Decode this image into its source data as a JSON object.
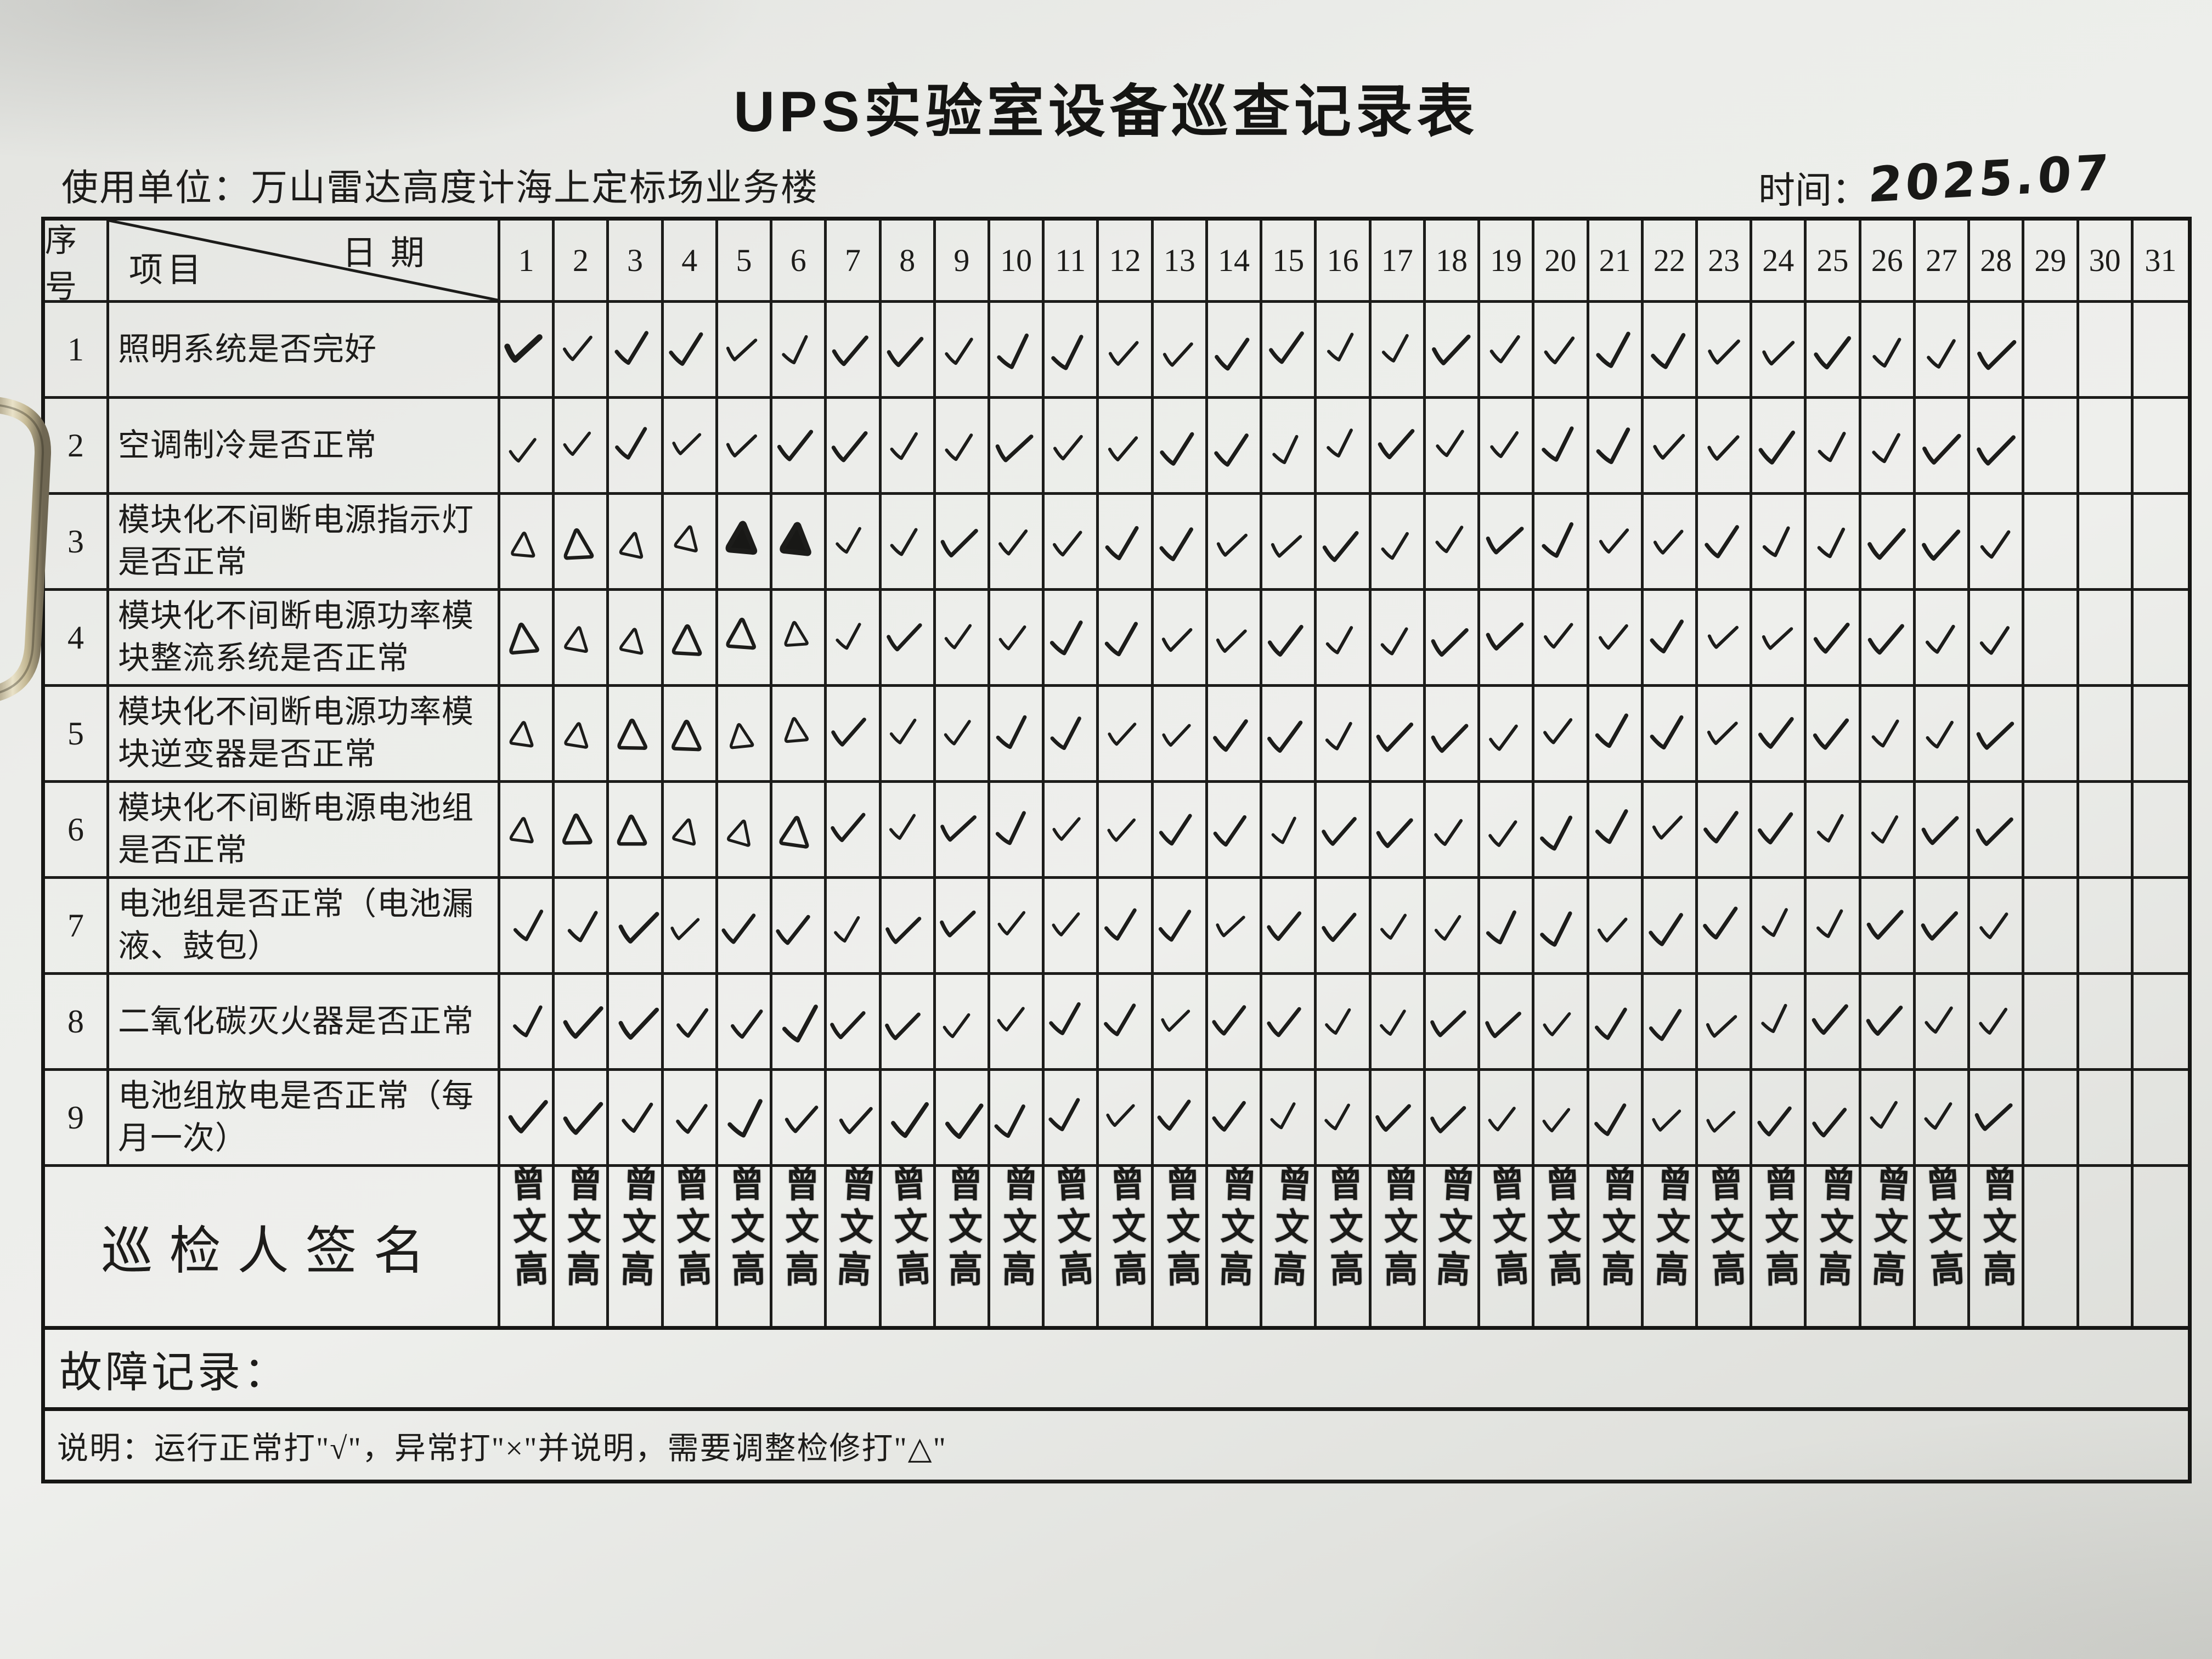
{
  "page": {
    "title": "UPS实验室设备巡查记录表"
  },
  "meta": {
    "unit_label": "使用单位：",
    "unit_value": "万山雷达高度计海上定标场业务楼",
    "time_label": "时间：",
    "time_value": "2025.07"
  },
  "table": {
    "corner": {
      "index": "序号",
      "item": "项目",
      "date": "日期"
    },
    "days": [
      "1",
      "2",
      "3",
      "4",
      "5",
      "6",
      "7",
      "8",
      "9",
      "10",
      "11",
      "12",
      "13",
      "14",
      "15",
      "16",
      "17",
      "18",
      "19",
      "20",
      "21",
      "22",
      "23",
      "24",
      "25",
      "26",
      "27",
      "28",
      "29",
      "30",
      "31"
    ],
    "symbols": {
      "C": "√",
      "CB": "√ (bold ink)",
      "T": "△",
      "TB": "△ (heavily inked)",
      "": "empty"
    },
    "rows": [
      {
        "no": "1",
        "item": "照明系统是否完好",
        "marks": [
          "CB",
          "C",
          "C",
          "C",
          "C",
          "C",
          "C",
          "C",
          "C",
          "C",
          "C",
          "C",
          "C",
          "C",
          "C",
          "C",
          "C",
          "C",
          "C",
          "C",
          "C",
          "C",
          "C",
          "C",
          "C",
          "C",
          "C",
          "C",
          "",
          "",
          ""
        ]
      },
      {
        "no": "2",
        "item": "空调制冷是否正常",
        "marks": [
          "C",
          "C",
          "C",
          "C",
          "C",
          "C",
          "C",
          "C",
          "C",
          "C",
          "C",
          "C",
          "C",
          "C",
          "C",
          "C",
          "C",
          "C",
          "C",
          "C",
          "C",
          "C",
          "C",
          "C",
          "C",
          "C",
          "C",
          "C",
          "",
          "",
          ""
        ]
      },
      {
        "no": "3",
        "item": "模块化不间断电源指示灯是否正常",
        "marks": [
          "T",
          "T",
          "T",
          "T",
          "TB",
          "TB",
          "C",
          "C",
          "C",
          "C",
          "C",
          "C",
          "C",
          "C",
          "C",
          "C",
          "C",
          "C",
          "C",
          "C",
          "C",
          "C",
          "C",
          "C",
          "C",
          "C",
          "C",
          "C",
          "",
          "",
          ""
        ]
      },
      {
        "no": "4",
        "item": "模块化不间断电源功率模块整流系统是否正常",
        "marks": [
          "T",
          "T",
          "T",
          "T",
          "T",
          "T",
          "C",
          "C",
          "C",
          "C",
          "C",
          "C",
          "C",
          "C",
          "C",
          "C",
          "C",
          "C",
          "C",
          "C",
          "C",
          "C",
          "C",
          "C",
          "C",
          "C",
          "C",
          "C",
          "",
          "",
          ""
        ]
      },
      {
        "no": "5",
        "item": "模块化不间断电源功率模块逆变器是否正常",
        "marks": [
          "T",
          "T",
          "T",
          "T",
          "T",
          "T",
          "C",
          "C",
          "C",
          "C",
          "C",
          "C",
          "C",
          "C",
          "C",
          "C",
          "C",
          "C",
          "C",
          "C",
          "C",
          "C",
          "C",
          "C",
          "C",
          "C",
          "C",
          "C",
          "",
          "",
          ""
        ]
      },
      {
        "no": "6",
        "item": "模块化不间断电源电池组是否正常",
        "marks": [
          "T",
          "T",
          "T",
          "T",
          "T",
          "T",
          "C",
          "C",
          "C",
          "C",
          "C",
          "C",
          "C",
          "C",
          "C",
          "C",
          "C",
          "C",
          "C",
          "C",
          "C",
          "C",
          "C",
          "C",
          "C",
          "C",
          "C",
          "C",
          "",
          "",
          ""
        ]
      },
      {
        "no": "7",
        "item": "电池组是否正常（电池漏液、鼓包）",
        "marks": [
          "C",
          "C",
          "C",
          "C",
          "C",
          "C",
          "C",
          "C",
          "C",
          "C",
          "C",
          "C",
          "C",
          "C",
          "C",
          "C",
          "C",
          "C",
          "C",
          "C",
          "C",
          "C",
          "C",
          "C",
          "C",
          "C",
          "C",
          "C",
          "",
          "",
          ""
        ]
      },
      {
        "no": "8",
        "item": "二氧化碳灭火器是否正常",
        "marks": [
          "C",
          "C",
          "C",
          "C",
          "C",
          "C",
          "C",
          "C",
          "C",
          "C",
          "C",
          "C",
          "C",
          "C",
          "C",
          "C",
          "C",
          "C",
          "C",
          "C",
          "C",
          "C",
          "C",
          "C",
          "C",
          "C",
          "C",
          "C",
          "",
          "",
          ""
        ]
      },
      {
        "no": "9",
        "item": "电池组放电是否正常（每月一次）",
        "marks": [
          "C",
          "C",
          "C",
          "C",
          "C",
          "C",
          "C",
          "C",
          "C",
          "C",
          "C",
          "C",
          "C",
          "C",
          "C",
          "C",
          "C",
          "C",
          "C",
          "C",
          "C",
          "C",
          "C",
          "C",
          "C",
          "C",
          "C",
          "C",
          "",
          "",
          ""
        ]
      }
    ],
    "signature_row": {
      "label": "巡检人签名",
      "signatures": [
        "曾文高",
        "曾文高",
        "曾文高",
        "曾文高",
        "曾文高",
        "曾文高",
        "曾文高",
        "曾文高",
        "曾文高",
        "曾文高",
        "曾文高",
        "曾文高",
        "曾文高",
        "曾文高",
        "曾文高",
        "曾文高",
        "曾文高",
        "曾文高",
        "曾文高",
        "曾文高",
        "曾文高",
        "曾文高",
        "曾文高",
        "曾文高",
        "曾文高",
        "曾文高",
        "曾文高",
        "曾文高",
        "",
        "",
        ""
      ]
    }
  },
  "footer": {
    "fault_label": "故障记录：",
    "note": "说明：运行正常打\"√\"，异常打\"×\"并说明，需要调整检修打\"△\""
  }
}
